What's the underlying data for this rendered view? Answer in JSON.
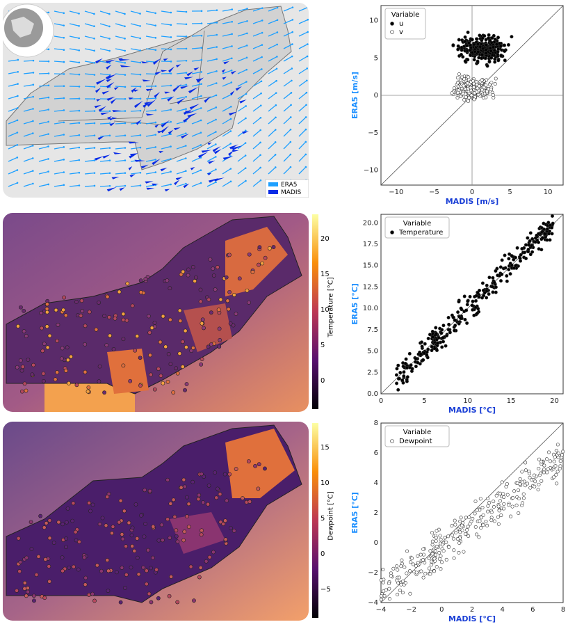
{
  "colors": {
    "era5": "#1ea0ff",
    "madis": "#0a2de6",
    "axis_label": "#1e90ff",
    "madis_label": "#1a3fd6"
  },
  "maps": {
    "wind": {
      "legend": [
        "ERA5",
        "MADIS"
      ]
    },
    "temperature": {
      "colorbar_label": "Temperature [°C]",
      "ticks": [
        "20",
        "15",
        "10",
        "5",
        "0"
      ],
      "colormap": "inferno"
    },
    "dewpoint": {
      "colorbar_label": "Dewpoint [°C]",
      "ticks": [
        "15",
        "10",
        "5",
        "0",
        "−5"
      ],
      "colormap": "inferno"
    }
  },
  "chart_data": [
    {
      "type": "scatter",
      "xlabel": "MADIS [m/s]",
      "ylabel": "ERA5 [m/s]",
      "xlim": [
        -12,
        12
      ],
      "ylim": [
        -12,
        12
      ],
      "xticks": [
        "−10",
        "−5",
        "0",
        "5",
        "10"
      ],
      "yticks": [
        "10",
        "5",
        "0",
        "−5",
        "−10"
      ],
      "legend_title": "Variable",
      "series": [
        {
          "name": "u",
          "marker": "filled",
          "center": [
            1.5,
            6.2
          ],
          "spread": [
            2.0,
            1.2
          ],
          "n": 260
        },
        {
          "name": "v",
          "marker": "open",
          "center": [
            0.0,
            1.0
          ],
          "spread": [
            1.8,
            1.0
          ],
          "n": 260
        }
      ],
      "reference_lines": [
        "y=x",
        "x=0",
        "y=0"
      ]
    },
    {
      "type": "scatter",
      "xlabel": "MADIS [°C]",
      "ylabel": "ERA5 [°C]",
      "xlim": [
        0,
        21
      ],
      "ylim": [
        0,
        21
      ],
      "xticks": [
        "0",
        "5",
        "10",
        "15",
        "20"
      ],
      "yticks": [
        "20.0",
        "17.5",
        "15.0",
        "12.5",
        "10.0",
        "7.5",
        "5.0",
        "2.5",
        "0.0"
      ],
      "legend_title": "Variable",
      "series": [
        {
          "name": "Temperature",
          "marker": "filled",
          "range": [
            1.5,
            20
          ],
          "n": 300
        }
      ],
      "reference_lines": [
        "y=x"
      ]
    },
    {
      "type": "scatter",
      "xlabel": "MADIS [°C]",
      "ylabel": "ERA5 [°C]",
      "xlim": [
        -4,
        8
      ],
      "ylim": [
        -4,
        8
      ],
      "xticks": [
        "−4",
        "−2",
        "0",
        "2",
        "4",
        "6",
        "8"
      ],
      "yticks": [
        "8",
        "6",
        "4",
        "2",
        "0",
        "−2",
        "−4"
      ],
      "legend_title": "Variable",
      "series": [
        {
          "name": "Dewpoint",
          "marker": "open",
          "range": [
            -4,
            8
          ],
          "n": 300
        }
      ],
      "reference_lines": [
        "y=x"
      ]
    }
  ]
}
